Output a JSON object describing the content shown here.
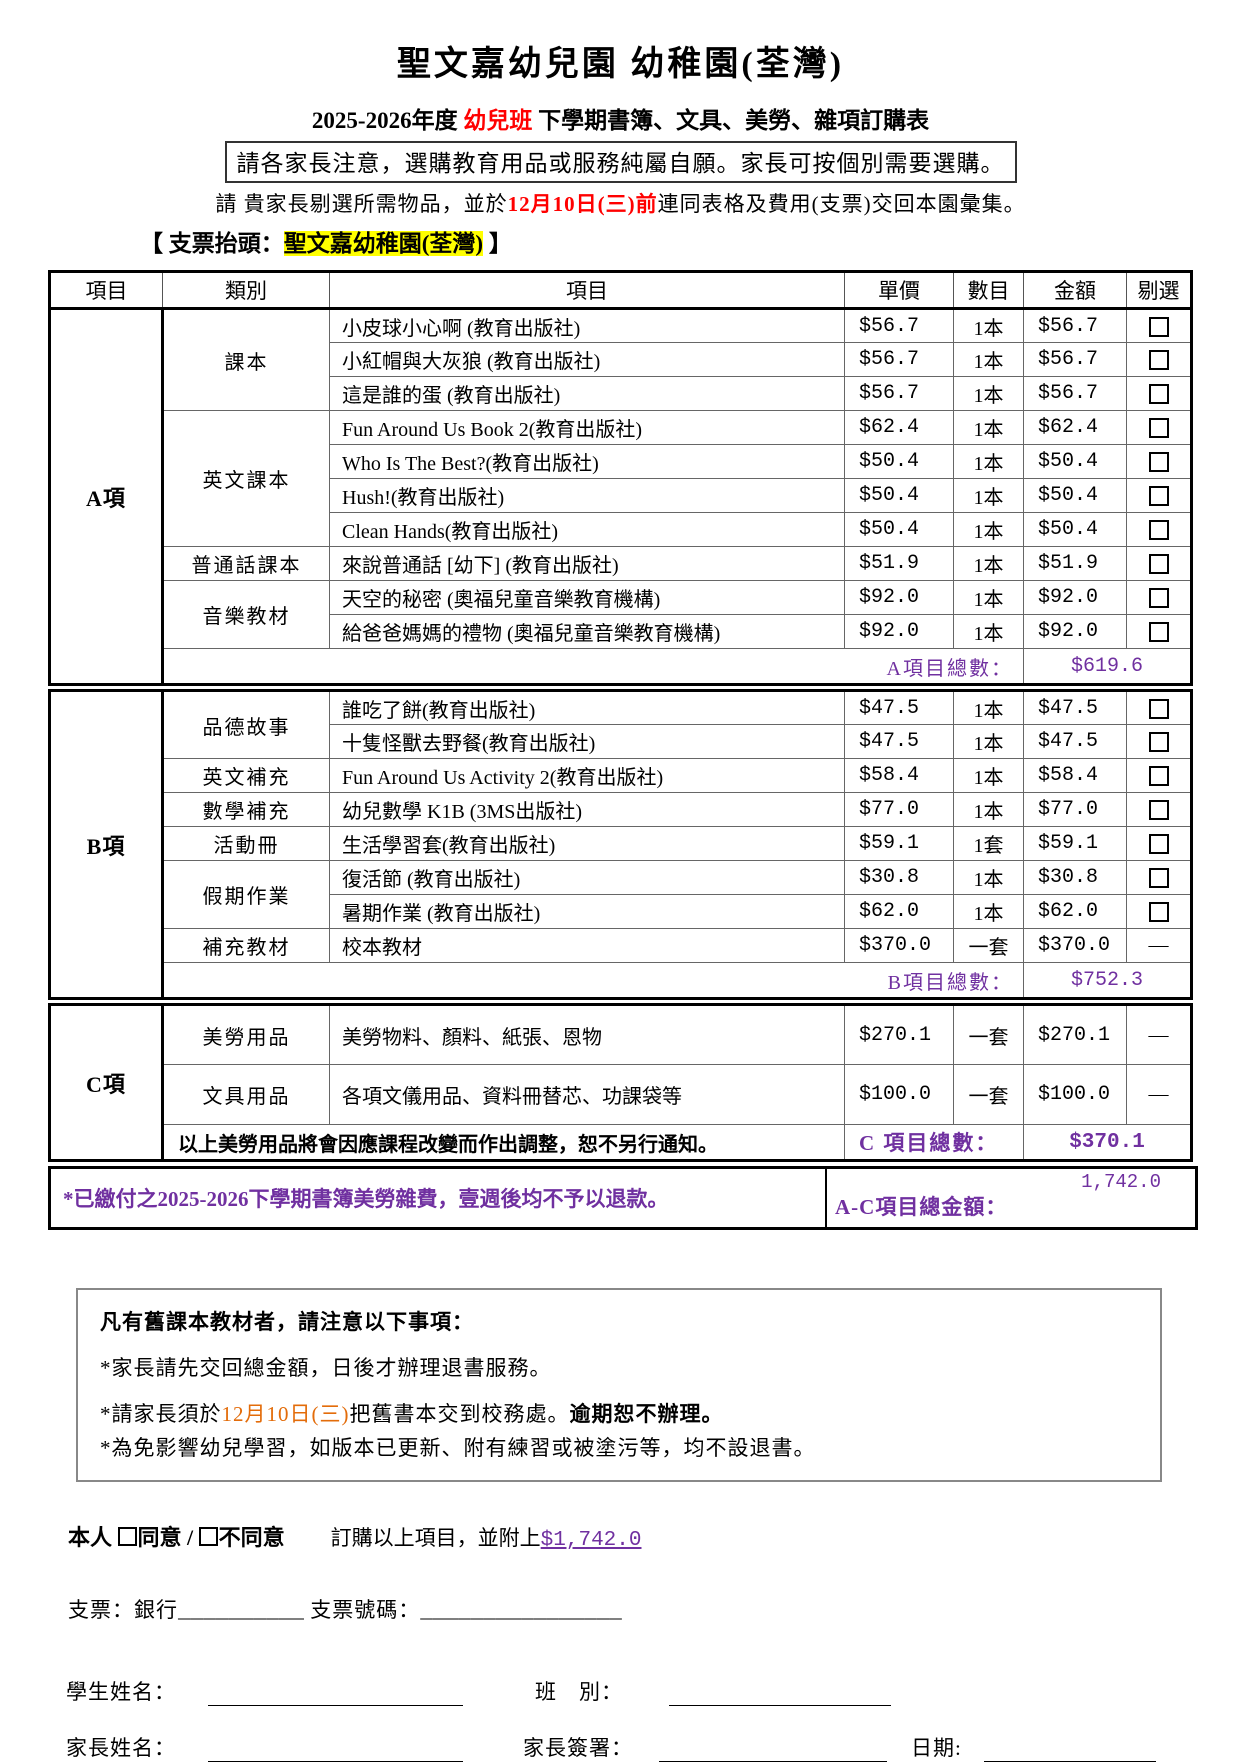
{
  "colors": {
    "red": "#FF0000",
    "orange": "#E36C0A",
    "purple": "#7030A0",
    "highlight": "#FFFF00"
  },
  "header": {
    "title": "聖文嘉幼兒園 幼稚園(荃灣)",
    "subtitle_prefix": "2025-2026年度 ",
    "subtitle_red": "幼兒班",
    "subtitle_suffix": " 下學期書簿、文具、美勞、雜項訂購表",
    "notice": "請各家長注意，選購教育用品或服務純屬自願。家長可按個別需要選購。",
    "instruction_pre": "請 貴家長剔選所需物品，並於",
    "instruction_date": "12月10日(三)前",
    "instruction_post": "連同表格及費用(支票)交回本園彙集。",
    "payee_open": "【 支票抬頭：",
    "payee": "聖文嘉幼稚園(荃灣)",
    "payee_close": " 】"
  },
  "table": {
    "headers": [
      "項目",
      "類別",
      "項目",
      "單價",
      "數目",
      "金額",
      "剔選"
    ],
    "sections": [
      {
        "id": "A",
        "label": "A項",
        "total_label": "A項目總數：",
        "total": "$619.6",
        "groups": [
          {
            "category": "課本",
            "items": [
              {
                "name": "小皮球小心啊 (教育出版社)",
                "price": "$56.7",
                "qty": "1本",
                "amount": "$56.7",
                "check": "box"
              },
              {
                "name": "小紅帽與大灰狼 (教育出版社)",
                "price": "$56.7",
                "qty": "1本",
                "amount": "$56.7",
                "check": "box"
              },
              {
                "name": "這是誰的蛋 (教育出版社)",
                "price": "$56.7",
                "qty": "1本",
                "amount": "$56.7",
                "check": "box"
              }
            ]
          },
          {
            "category": "英文課本",
            "items": [
              {
                "name": "Fun Around Us Book 2(教育出版社)",
                "price": "$62.4",
                "qty": "1本",
                "amount": "$62.4",
                "check": "box"
              },
              {
                "name": "Who Is The Best?(教育出版社)",
                "price": "$50.4",
                "qty": "1本",
                "amount": "$50.4",
                "check": "box"
              },
              {
                "name": "Hush!(教育出版社)",
                "price": "$50.4",
                "qty": "1本",
                "amount": "$50.4",
                "check": "box"
              },
              {
                "name": "Clean Hands(教育出版社)",
                "price": "$50.4",
                "qty": "1本",
                "amount": "$50.4",
                "check": "box"
              }
            ]
          },
          {
            "category": "普通話課本",
            "items": [
              {
                "name": "來說普通話 [幼下] (教育出版社)",
                "price": "$51.9",
                "qty": "1本",
                "amount": "$51.9",
                "check": "box"
              }
            ]
          },
          {
            "category": "音樂教材",
            "items": [
              {
                "name": "天空的秘密 (奧福兒童音樂教育機構)",
                "price": "$92.0",
                "qty": "1本",
                "amount": "$92.0",
                "check": "box"
              },
              {
                "name": "給爸爸媽媽的禮物 (奧福兒童音樂教育機構)",
                "price": "$92.0",
                "qty": "1本",
                "amount": "$92.0",
                "check": "box"
              }
            ]
          }
        ]
      },
      {
        "id": "B",
        "label": "B項",
        "total_label": "B項目總數：",
        "total": "$752.3",
        "groups": [
          {
            "category": "品德故事",
            "items": [
              {
                "name": "誰吃了餅(教育出版社)",
                "price": "$47.5",
                "qty": "1本",
                "amount": "$47.5",
                "check": "box"
              },
              {
                "name": "十隻怪獸去野餐(教育出版社)",
                "price": "$47.5",
                "qty": "1本",
                "amount": "$47.5",
                "check": "box"
              }
            ]
          },
          {
            "category": "英文補充",
            "items": [
              {
                "name": "Fun Around Us Activity 2(教育出版社)",
                "price": "$58.4",
                "qty": "1本",
                "amount": "$58.4",
                "check": "box"
              }
            ]
          },
          {
            "category": "數學補充",
            "items": [
              {
                "name": "幼兒數學 K1B (3MS出版社)",
                "price": "$77.0",
                "qty": "1本",
                "amount": "$77.0",
                "check": "box"
              }
            ]
          },
          {
            "category": "活動冊",
            "items": [
              {
                "name": "生活學習套(教育出版社)",
                "price": "$59.1",
                "qty": "1套",
                "amount": "$59.1",
                "check": "box"
              }
            ]
          },
          {
            "category": "假期作業",
            "items": [
              {
                "name": "復活節 (教育出版社)",
                "price": "$30.8",
                "qty": "1本",
                "amount": "$30.8",
                "check": "box"
              },
              {
                "name": "暑期作業 (教育出版社)",
                "price": "$62.0",
                "qty": "1本",
                "amount": "$62.0",
                "check": "box"
              }
            ]
          },
          {
            "category": "補充教材",
            "items": [
              {
                "name": "校本教材",
                "price": "$370.0",
                "qty": "一套",
                "amount": "$370.0",
                "check": "dash"
              }
            ]
          }
        ]
      },
      {
        "id": "C",
        "label": "C項",
        "note": "以上美勞用品將會因應課程改變而作出調整，恕不另行通知。",
        "total_label": "C 項目總數：",
        "total": "$370.1",
        "groups": [
          {
            "category": "美勞用品",
            "items": [
              {
                "name": "美勞物料、顏料、紙張、恩物",
                "price": "$270.1",
                "qty": "一套",
                "amount": "$270.1",
                "check": "dash"
              }
            ]
          },
          {
            "category": "文具用品",
            "items": [
              {
                "name": "各項文儀用品、資料冊替芯、功課袋等",
                "price": "$100.0",
                "qty": "一套",
                "amount": "$100.0",
                "check": "dash"
              }
            ]
          }
        ]
      }
    ]
  },
  "grand": {
    "refund_note": "*已繳付之2025-2026下學期書簿美勞雜費，壹週後均不予以退款。",
    "label": "A-C項目總金額：",
    "value": "1,742.0"
  },
  "oldbooks": {
    "heading": "凡有舊課本教材者，請注意以下事項：",
    "line1": "*家長請先交回總金額，日後才辦理退書服務。",
    "line2_pre": "*請家長須於",
    "line2_date": "12月10日(三)",
    "line2_mid": "把舊書本交到校務處。",
    "line2_bold": "逾期恕不辦理。",
    "line3": "*為免影響幼兒學習，如版本已更新、附有練習或被塗污等，均不設退書。"
  },
  "agreement": {
    "prefix": "本人 ",
    "agree": "同意",
    "slash": " / ",
    "disagree": "不同意",
    "mid": "訂購以上項目，並附上",
    "amount": "$1,742.0"
  },
  "cheque": {
    "label1": "支票：銀行",
    "blank1": "__________",
    "label2": " 支票號碼：",
    "blank2": "________________"
  },
  "fields": {
    "student_name": "學生姓名：",
    "class_label": "班　別：",
    "parent_name": "家長姓名：",
    "parent_sign": "家長簽署：",
    "date_label": "日期:"
  }
}
